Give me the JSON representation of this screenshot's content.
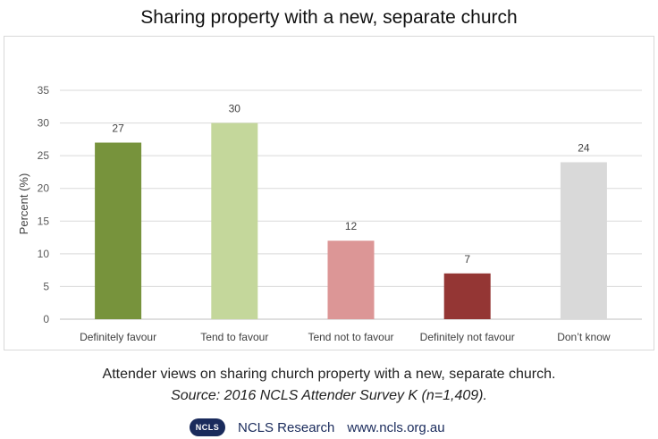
{
  "header": {
    "title": "Sharing property with a new, separate church"
  },
  "chart_data": {
    "type": "bar",
    "title": "Sharing property with a new, separate church",
    "categories": [
      "Definitely favour",
      "Tend to favour",
      "Tend not to favour",
      "Definitely not favour",
      "Don’t know"
    ],
    "values": [
      27,
      30,
      12,
      7,
      24
    ],
    "colors": [
      "#77933c",
      "#c4d79b",
      "#dc9696",
      "#943634",
      "#d9d9d9"
    ],
    "xlabel": "",
    "ylabel": "Percent (%)",
    "ylim": [
      0,
      35
    ],
    "yticks": [
      0,
      5,
      10,
      15,
      20,
      25,
      30,
      35
    ],
    "grid": true,
    "legend": "none",
    "data_labels": true
  },
  "caption": {
    "text": "Attender views on sharing church property with a new, separate church.",
    "source": "Source: 2016 NCLS Attender Survey K (n=1,409)."
  },
  "footer": {
    "logo_text": "NCLS",
    "org": "NCLS Research",
    "url": "www.ncls.org.au"
  }
}
